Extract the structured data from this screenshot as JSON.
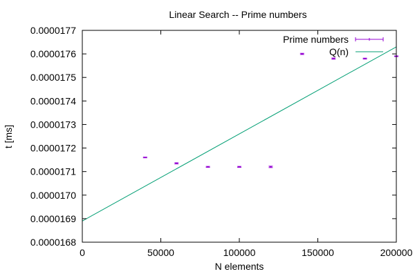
{
  "chart_data": {
    "type": "scatter",
    "title": "Linear Search -- Prime numbers",
    "xlabel": "N elements",
    "ylabel": "t [ms]",
    "xlim": [
      0,
      200000
    ],
    "ylim": [
      1.68e-05,
      1.77e-05
    ],
    "x_ticks": [
      0,
      50000,
      100000,
      150000,
      200000
    ],
    "x_tick_labels": [
      "0",
      "50000",
      "100000",
      "150000",
      "200000"
    ],
    "y_ticks": [
      1.68e-05,
      1.69e-05,
      1.7e-05,
      1.71e-05,
      1.72e-05,
      1.73e-05,
      1.74e-05,
      1.75e-05,
      1.76e-05,
      1.77e-05
    ],
    "y_tick_labels": [
      "0.0000168",
      "0.0000169",
      "0.0000170",
      "0.0000171",
      "0.0000172",
      "0.0000173",
      "0.0000174",
      "0.0000175",
      "0.0000176",
      "0.0000177"
    ],
    "grid": false,
    "legend_position": "top-right",
    "series": [
      {
        "name": "Prime numbers",
        "kind": "errorbars",
        "color": "#9400d3",
        "points": [
          {
            "x": 40000,
            "y": 1.716e-05,
            "yerr": 1.5e-09
          },
          {
            "x": 60000,
            "y": 1.7135e-05,
            "yerr": 2.5e-09
          },
          {
            "x": 80000,
            "y": 1.712e-05,
            "yerr": 2e-09
          },
          {
            "x": 100000,
            "y": 1.712e-05,
            "yerr": 2e-09
          },
          {
            "x": 120000,
            "y": 1.712e-05,
            "yerr": 3e-09
          },
          {
            "x": 140000,
            "y": 1.76e-05,
            "yerr": 2.5e-09
          },
          {
            "x": 160000,
            "y": 1.758e-05,
            "yerr": 2.5e-09
          },
          {
            "x": 180000,
            "y": 1.758e-05,
            "yerr": 2e-09
          },
          {
            "x": 200000,
            "y": 1.759e-05,
            "yerr": 1.5e-09
          }
        ]
      },
      {
        "name": "Q(n)",
        "kind": "line",
        "color": "#009e73",
        "x": [
          0,
          200000
        ],
        "y": [
          1.689e-05,
          1.763e-05
        ]
      }
    ]
  }
}
